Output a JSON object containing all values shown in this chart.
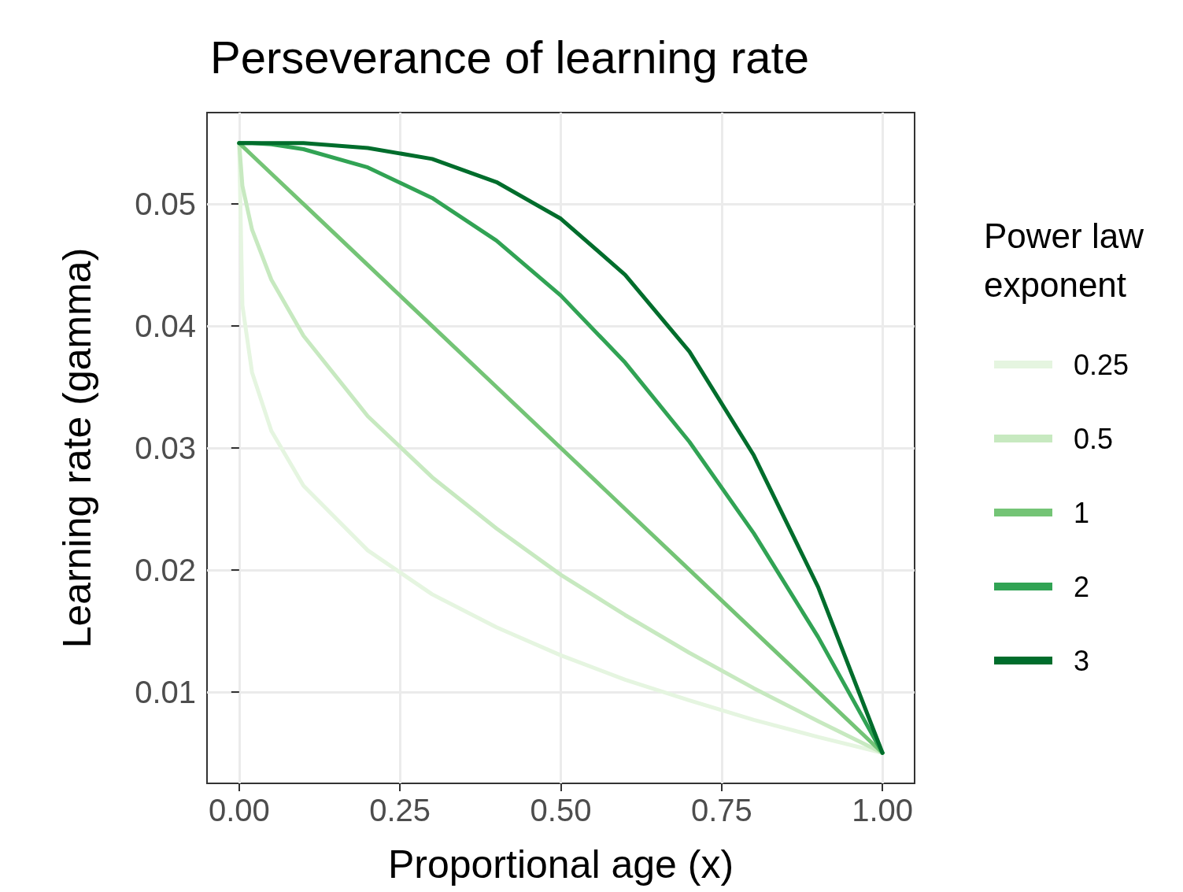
{
  "chart_data": {
    "type": "line",
    "title": "Perseverance of learning rate",
    "xlabel": "Proportional age (x)",
    "ylabel": "Learning rate (gamma)",
    "legend_title": "Power law\nexponent",
    "legend": "right",
    "grid": true,
    "marker": "none",
    "line_style": "solid",
    "x": [
      0,
      0.005,
      0.02,
      0.05,
      0.1,
      0.2,
      0.3,
      0.4,
      0.5,
      0.6,
      0.7,
      0.8,
      0.9,
      1
    ],
    "xlim": [
      -0.05,
      1.05
    ],
    "xticks": [
      {
        "value": 0,
        "label": "0.00"
      },
      {
        "value": 0.25,
        "label": "0.25"
      },
      {
        "value": 0.5,
        "label": "0.50"
      },
      {
        "value": 0.75,
        "label": "0.75"
      },
      {
        "value": 1,
        "label": "1.00"
      }
    ],
    "ylim": [
      0.0025,
      0.0575
    ],
    "yticks": [
      0.01,
      0.02,
      0.03,
      0.04,
      0.05
    ],
    "series": [
      {
        "name": "0.25",
        "color": "#e5f5e0",
        "values": [
          0.055,
          0.0417,
          0.0362,
          0.0314,
          0.0269,
          0.0216,
          0.018,
          0.0153,
          0.013,
          0.011,
          0.0093,
          0.0077,
          0.0063,
          0.005
        ]
      },
      {
        "name": "0.5",
        "color": "#c7e9c0",
        "values": [
          0.055,
          0.0515,
          0.0479,
          0.0438,
          0.0392,
          0.0326,
          0.0276,
          0.0234,
          0.0196,
          0.0163,
          0.0132,
          0.0103,
          0.0076,
          0.005
        ]
      },
      {
        "name": "1",
        "color": "#74c476",
        "values": [
          0.055,
          0.05475,
          0.054,
          0.0525,
          0.05,
          0.045,
          0.04,
          0.035,
          0.03,
          0.025,
          0.02,
          0.015,
          0.01,
          0.005
        ]
      },
      {
        "name": "2",
        "color": "#31a354",
        "values": [
          0.055,
          0.055,
          0.055,
          0.0549,
          0.0545,
          0.053,
          0.0505,
          0.047,
          0.0425,
          0.037,
          0.0305,
          0.023,
          0.0145,
          0.005
        ]
      },
      {
        "name": "3",
        "color": "#006d2c",
        "values": [
          0.055,
          0.055,
          0.055,
          0.055,
          0.055,
          0.0546,
          0.0537,
          0.0518,
          0.0488,
          0.0442,
          0.0379,
          0.0294,
          0.0186,
          0.005
        ]
      }
    ]
  }
}
